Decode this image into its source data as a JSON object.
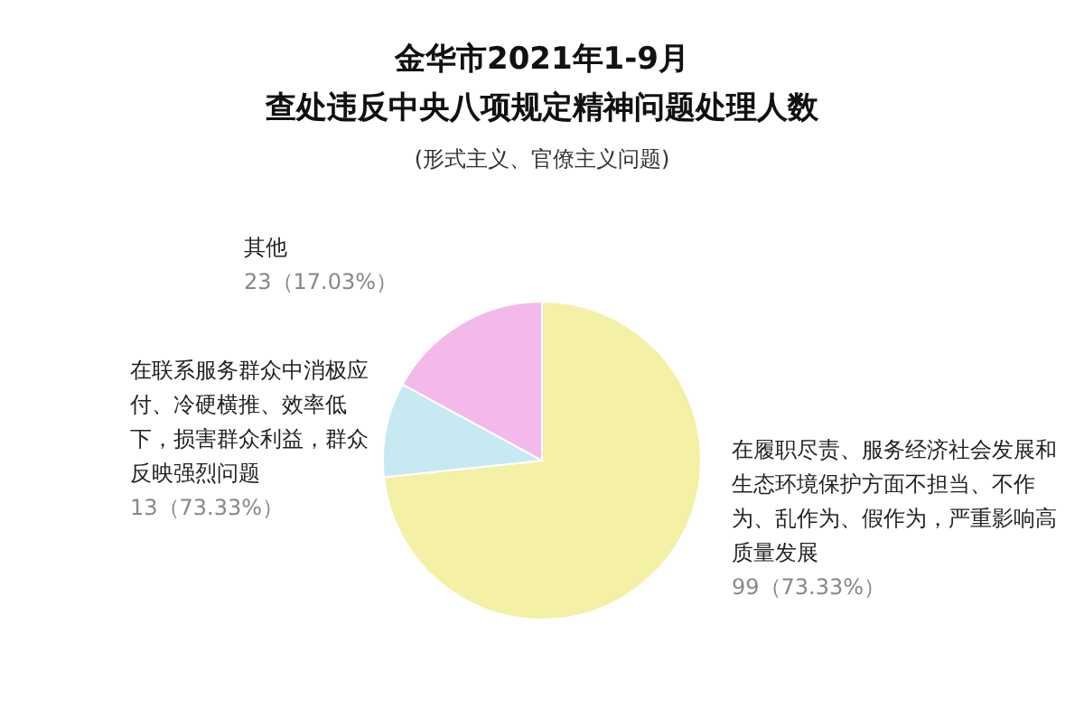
{
  "chart_data": {
    "type": "pie",
    "title": "金华市2021年1-9月",
    "subtitle": "查处违反中央八项规定精神问题处理人数",
    "annotations": [
      "(形式主义、官僚主义问题)"
    ],
    "categories": [
      "在履职尽责、服务经济社会发展和生态环境保护方面不担当、不作为、乱作为、假作为，严重影响高质量发展",
      "在联系服务群众中消极应付、冷硬横推、效率低下，损害群众利益，群众反映强烈问题",
      "其他"
    ],
    "values": [
      99,
      13,
      23
    ],
    "colors": [
      "#f4f0a6",
      "#c6e9f2",
      "#f3b9ea"
    ],
    "value_labels": [
      "99（73.33%）",
      "13（73.33%）",
      "23（17.03%）"
    ]
  }
}
